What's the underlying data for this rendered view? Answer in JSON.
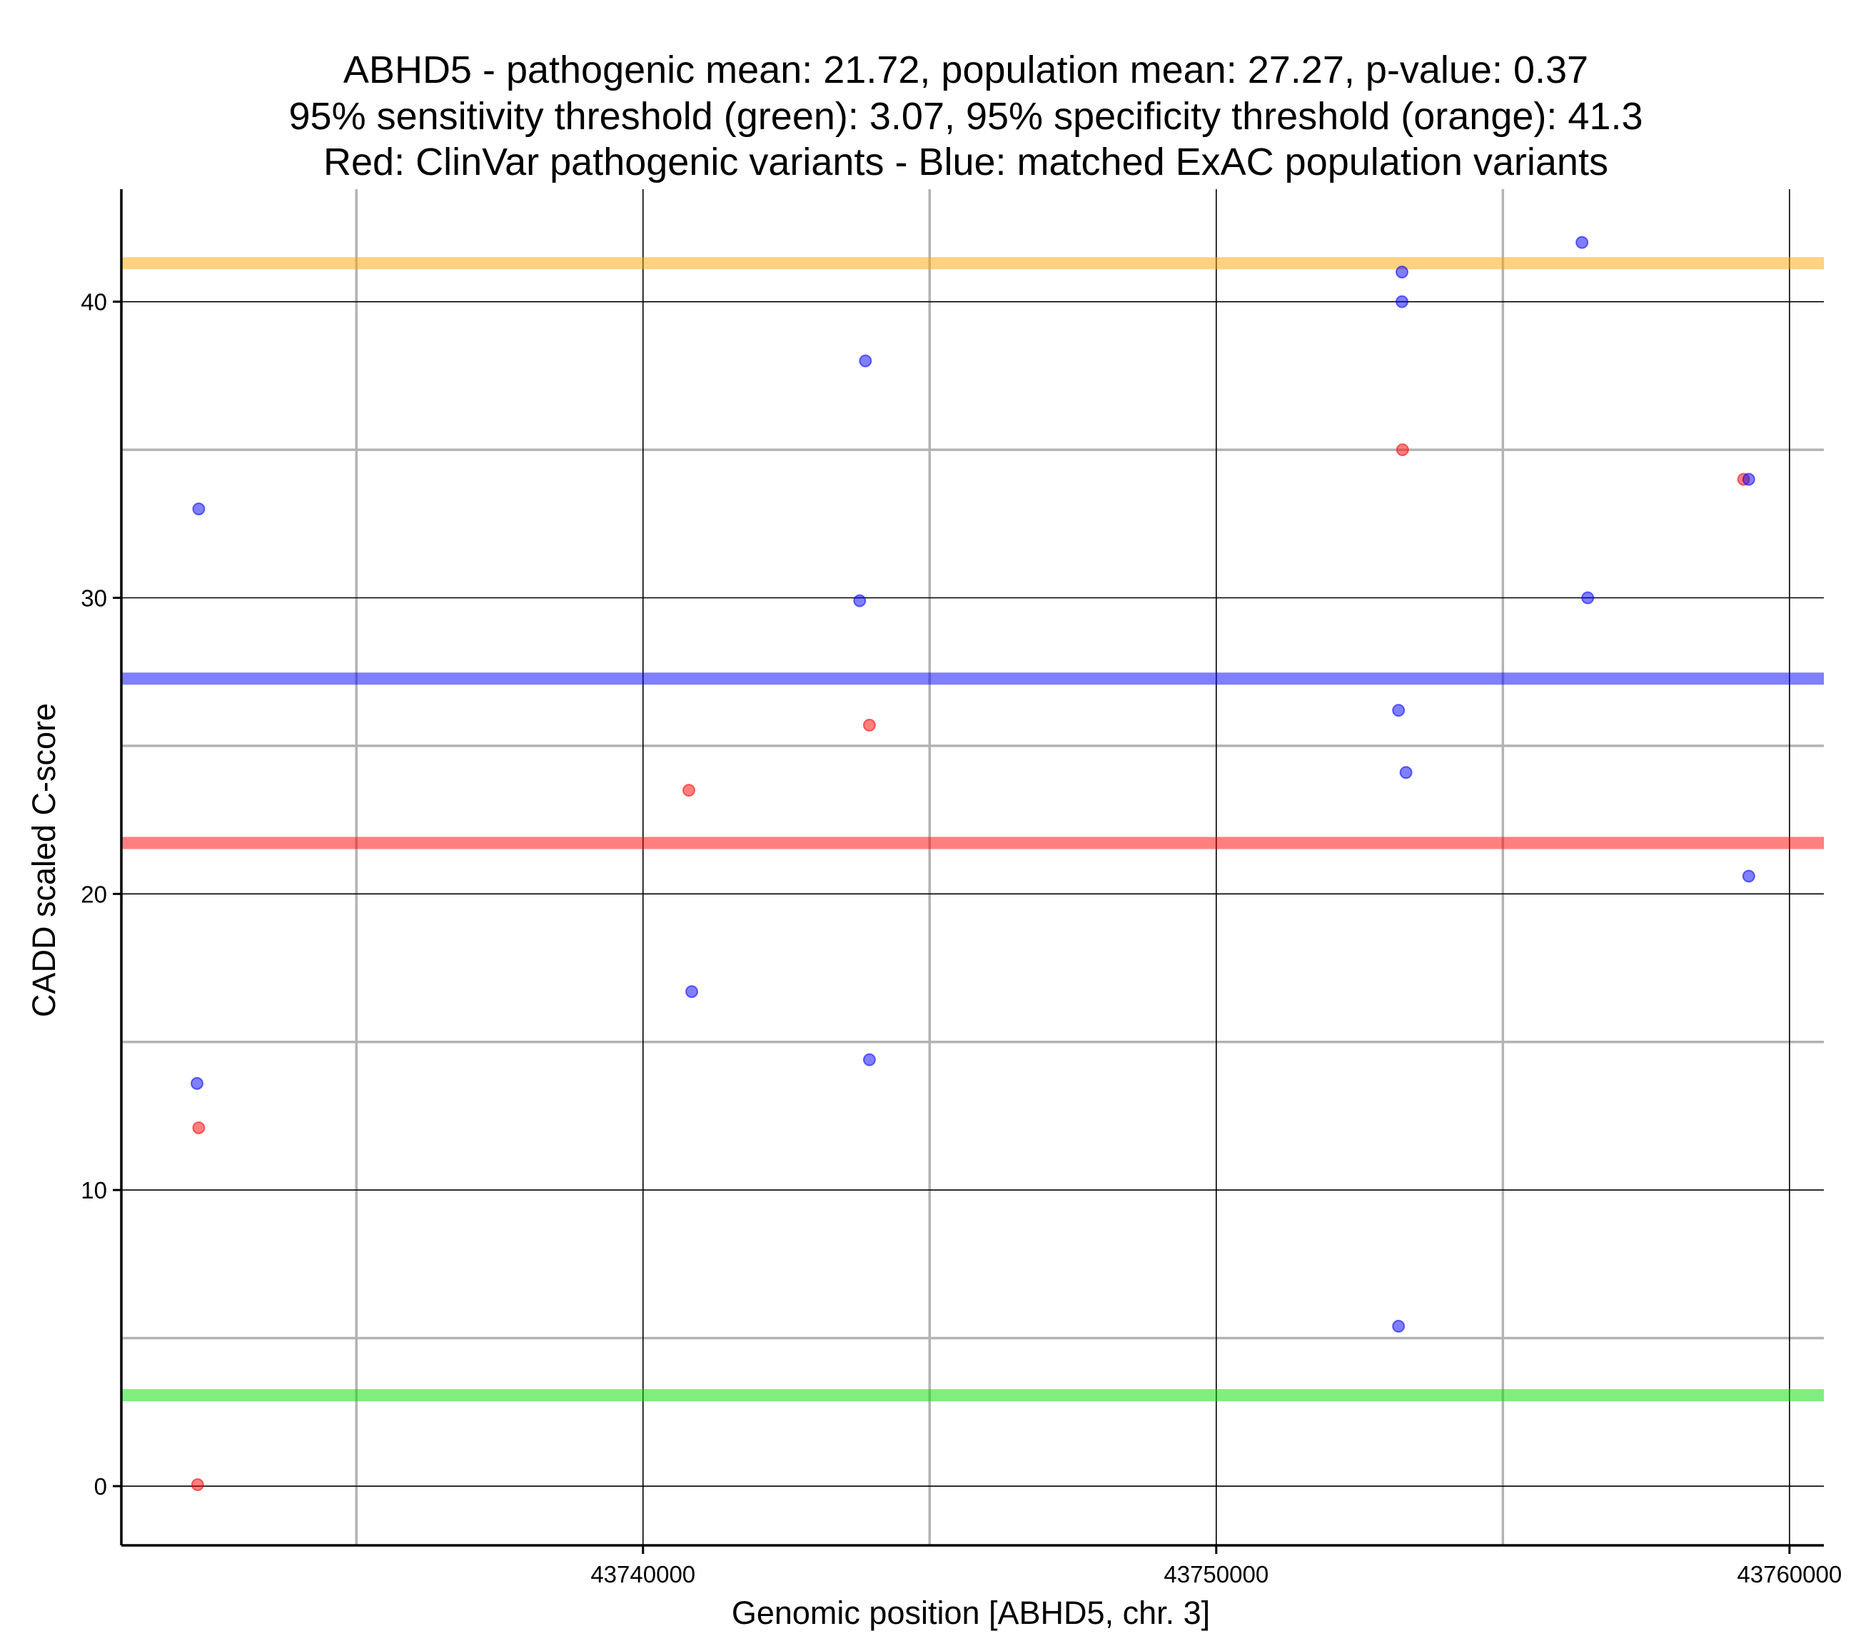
{
  "chart_data": {
    "type": "scatter",
    "title_lines": [
      "ABHD5 - pathogenic mean: 21.72, population mean: 27.27, p-value: 0.37",
      "95% sensitivity threshold (green): 3.07, 95% specificity threshold (orange): 41.3",
      "Red: ClinVar pathogenic variants - Blue: matched ExAC population variants"
    ],
    "xlabel": "Genomic position [ABHD5, chr. 3]",
    "ylabel": "CADD scaled C-score",
    "xlim": [
      43730900,
      43760600
    ],
    "ylim": [
      -2.0,
      43.8
    ],
    "x_ticks": [
      43740000,
      43750000,
      43760000
    ],
    "x_tick_labels": [
      "43740000",
      "43750000",
      "43760000"
    ],
    "x_minor_grid": [
      43735000,
      43745000,
      43755000
    ],
    "y_ticks": [
      0,
      10,
      20,
      30,
      40
    ],
    "y_tick_labels": [
      "0",
      "10",
      "20",
      "30",
      "40"
    ],
    "y_minor_grid": [
      5,
      15,
      25,
      35
    ],
    "grid": true,
    "reference_lines": [
      {
        "name": "95% specificity threshold",
        "y": 41.3,
        "color": "#ffa500"
      },
      {
        "name": "population mean",
        "y": 27.27,
        "color": "#0000ff"
      },
      {
        "name": "pathogenic mean",
        "y": 21.72,
        "color": "#ff0000"
      },
      {
        "name": "95% sensitivity threshold",
        "y": 3.07,
        "color": "#00dd00"
      }
    ],
    "series": [
      {
        "name": "ClinVar pathogenic variants",
        "color": "#ff0000",
        "points": [
          {
            "x": 43732250,
            "y": 12.1
          },
          {
            "x": 43732230,
            "y": 0.05
          },
          {
            "x": 43740800,
            "y": 23.5
          },
          {
            "x": 43743950,
            "y": 25.7
          },
          {
            "x": 43753250,
            "y": 35.0
          },
          {
            "x": 43759200,
            "y": 34.0
          }
        ]
      },
      {
        "name": "matched ExAC population variants",
        "color": "#0000ff",
        "points": [
          {
            "x": 43732250,
            "y": 33.0
          },
          {
            "x": 43732220,
            "y": 13.6
          },
          {
            "x": 43740850,
            "y": 16.7
          },
          {
            "x": 43743880,
            "y": 38.0
          },
          {
            "x": 43743780,
            "y": 29.9
          },
          {
            "x": 43743950,
            "y": 14.4
          },
          {
            "x": 43753240,
            "y": 41.0
          },
          {
            "x": 43753240,
            "y": 40.0
          },
          {
            "x": 43753180,
            "y": 26.2
          },
          {
            "x": 43753310,
            "y": 24.1
          },
          {
            "x": 43753180,
            "y": 5.4
          },
          {
            "x": 43756380,
            "y": 42.0
          },
          {
            "x": 43756480,
            "y": 30.0
          },
          {
            "x": 43759290,
            "y": 34.0
          },
          {
            "x": 43759290,
            "y": 20.6
          }
        ]
      }
    ]
  }
}
